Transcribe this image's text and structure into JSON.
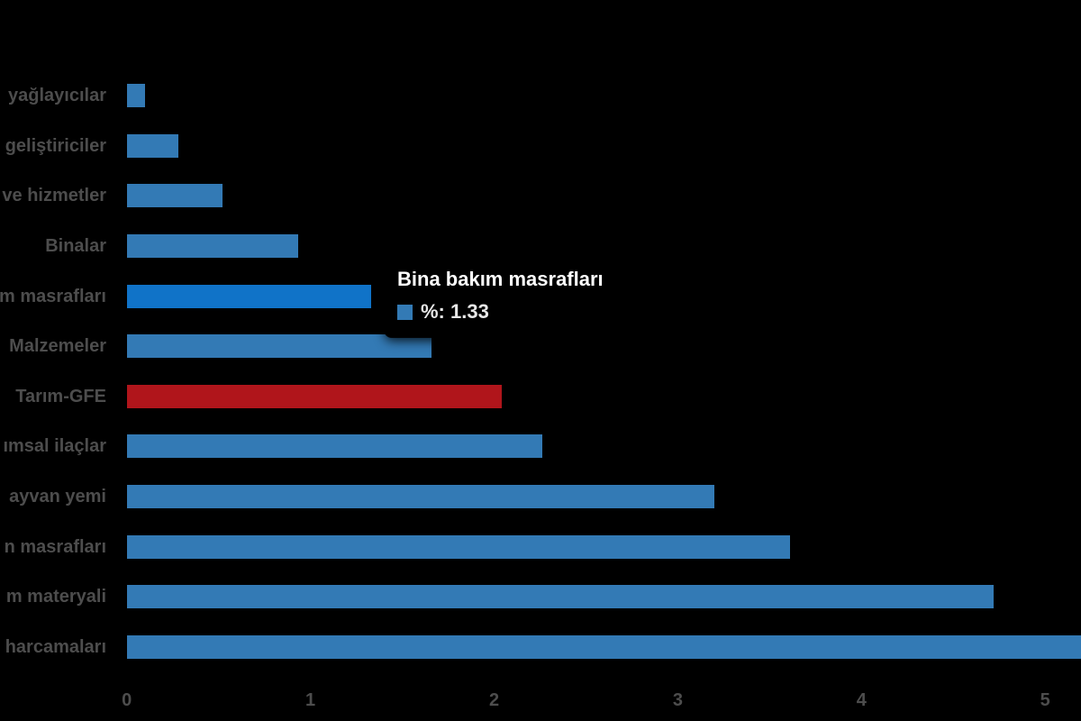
{
  "chart_data": {
    "type": "bar",
    "orientation": "horizontal",
    "title": "",
    "xlabel": "",
    "ylabel": "",
    "categories": [
      "yağlayıcılar",
      "geliştiriciler",
      "ve hizmetler",
      "Binalar",
      "m masrafları",
      "Malzemeler",
      "Tarım-GFE",
      "ımsal ilaçlar",
      "ayvan yemi",
      "n masrafları",
      "m materyali",
      "harcamaları"
    ],
    "series": [
      {
        "name": "%",
        "values": [
          0.1,
          0.28,
          0.52,
          0.93,
          1.33,
          1.66,
          2.04,
          2.26,
          3.2,
          3.61,
          4.72,
          5.3
        ]
      }
    ],
    "x_ticks": [
      "0",
      "1",
      "2",
      "3",
      "4",
      "5"
    ],
    "xlim": [
      0,
      5.2
    ],
    "grid": false,
    "legend": false,
    "highlighted_index": 4,
    "emphasis_index": 6,
    "clipped_index": 11,
    "colors": {
      "background": "#000000",
      "bar": "#337AB5",
      "bar_highlight": "#1073C8",
      "bar_emphasis": "#B0151B",
      "label_text": "#4D4D4D",
      "tick_text": "#4D4D4D",
      "tooltip_title": "#FFFFFF",
      "tooltip_text": "#E8E8E8",
      "tooltip_swatch": "#337AB5"
    }
  },
  "tooltip": {
    "title": "Bina bakım masrafları",
    "series_name": "%",
    "value": "1.33",
    "label": "%: 1.33"
  }
}
